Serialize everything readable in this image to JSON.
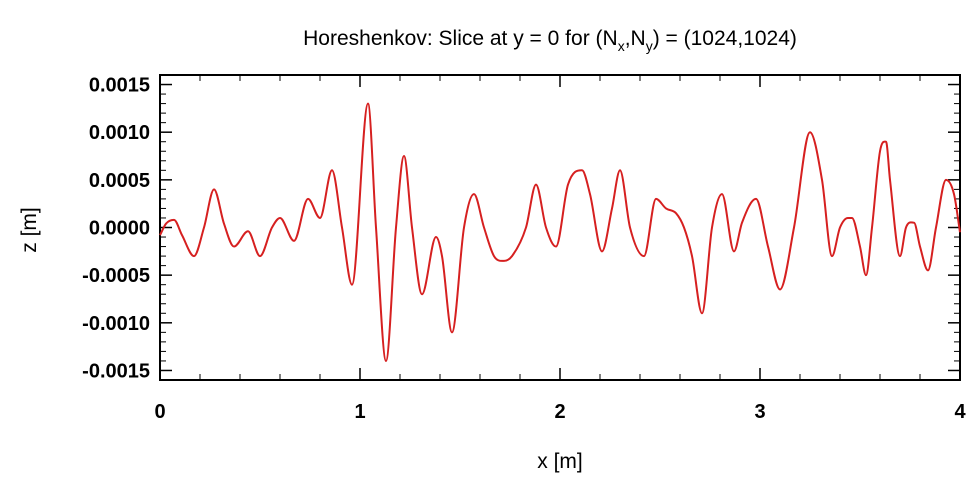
{
  "chart_data": {
    "type": "line",
    "title_main": "Horeshenkov: Slice at y = 0 for  (N",
    "title_sub1": "x",
    "title_comma": ",N",
    "title_sub2": "y",
    "title_rest": ") = (1024,1024)",
    "xlabel": "x [m]",
    "ylabel": "z [m]",
    "xlim": [
      0,
      4
    ],
    "ylim": [
      -0.0016,
      0.0016
    ],
    "x_ticks": [
      0,
      1,
      2,
      3,
      4
    ],
    "x_tick_labels": [
      "0",
      "1",
      "2",
      "3",
      "4"
    ],
    "y_ticks": [
      -0.0015,
      -0.001,
      -0.0005,
      0.0,
      0.0005,
      0.001,
      0.0015
    ],
    "y_tick_labels": [
      "-0.0015",
      "-0.0010",
      "-0.0005",
      "0.0000",
      "0.0005",
      "0.0010",
      "0.0015"
    ],
    "line_color": "#d62020",
    "grid": false,
    "series": [
      {
        "x": [
          0.0,
          0.03,
          0.07,
          0.11,
          0.17,
          0.22,
          0.27,
          0.32,
          0.37,
          0.44,
          0.5,
          0.56,
          0.6,
          0.67,
          0.74,
          0.8,
          0.86,
          0.91,
          0.96,
          1.04,
          1.08,
          1.13,
          1.18,
          1.22,
          1.26,
          1.31,
          1.38,
          1.41,
          1.46,
          1.52,
          1.57,
          1.62,
          1.67,
          1.72,
          1.76,
          1.83,
          1.88,
          1.93,
          1.98,
          2.04,
          2.11,
          2.15,
          2.21,
          2.26,
          2.3,
          2.35,
          2.42,
          2.48,
          2.53,
          2.58,
          2.62,
          2.66,
          2.71,
          2.76,
          2.81,
          2.87,
          2.91,
          2.98,
          3.04,
          3.1,
          3.17,
          3.25,
          3.31,
          3.36,
          3.4,
          3.44,
          3.46,
          3.5,
          3.53,
          3.56,
          3.6,
          3.63,
          3.65,
          3.7,
          3.73,
          3.77,
          3.8,
          3.84,
          3.88,
          3.93,
          3.97,
          4.0
        ],
        "y": [
          -8e-05,
          4e-05,
          8e-05,
          -8e-05,
          -0.0003,
          0.0,
          0.0004,
          4e-05,
          -0.0002,
          -4e-05,
          -0.0003,
          0.0,
          0.0001,
          -0.00014,
          0.0003,
          0.0001,
          0.0006,
          0.0,
          -0.0006,
          0.0013,
          0.0,
          -0.0014,
          0.0,
          0.00075,
          0.0,
          -0.0007,
          -0.0001,
          -0.0003,
          -0.0011,
          0.0,
          0.00035,
          0.0,
          -0.0003,
          -0.00035,
          -0.0003,
          0.0,
          0.00045,
          0.0,
          -0.0002,
          0.00045,
          0.0006,
          0.00035,
          -0.00025,
          0.0002,
          0.0006,
          0.0,
          -0.0003,
          0.0003,
          0.0002,
          0.00015,
          0.0,
          -0.0003,
          -0.0009,
          0.0,
          0.00035,
          -0.00025,
          5e-05,
          0.0003,
          -0.0002,
          -0.00065,
          0.0,
          0.001,
          0.0005,
          -0.0003,
          0.0,
          0.0001,
          0.0001,
          -0.0002,
          -0.0005,
          0.0,
          0.0008,
          0.0009,
          0.0005,
          -0.0003,
          0.0,
          5e-05,
          -0.0002,
          -0.00045,
          0.0,
          0.0005,
          0.00035,
          -5e-05
        ]
      }
    ]
  }
}
